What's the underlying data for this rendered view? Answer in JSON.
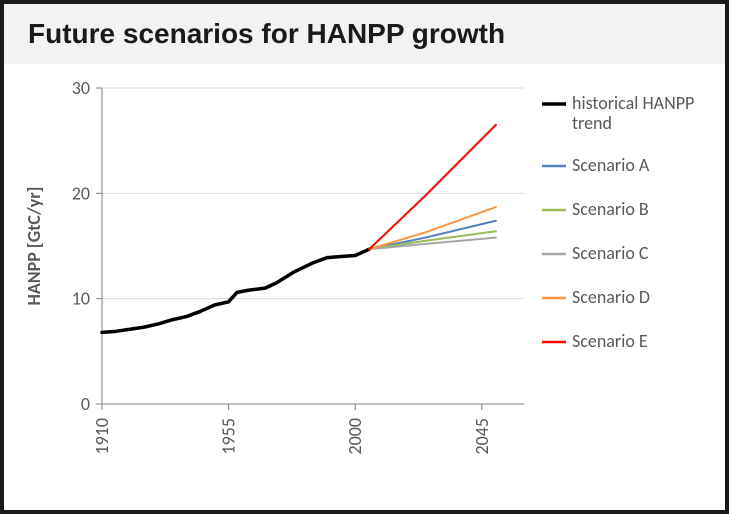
{
  "title": "Future scenarios for HANPP growth",
  "chart": {
    "type": "line",
    "background_color": "#ffffff",
    "plot_background_color": "#ffffff",
    "grid_color": "#d9d9d9",
    "axis_color": "#808080",
    "tick_label_color": "#595959",
    "axis_title_color": "#595959",
    "title_fontsize": 28,
    "label_fontsize": 18,
    "tick_fontsize": 18,
    "ylabel": "HANPP [GtC/yr]",
    "ylim": [
      0,
      30
    ],
    "yticks": [
      0,
      10,
      20,
      30
    ],
    "xlim": [
      1910,
      2060
    ],
    "xticks": [
      1910,
      1955,
      2000,
      2045
    ],
    "xtick_rotation": -90,
    "grid_horizontal": true,
    "grid_vertical": false,
    "legend_position": "right",
    "series": [
      {
        "name": "historical HANPP trend",
        "color": "#000000",
        "line_width": 3.5,
        "points": [
          [
            1910,
            6.8
          ],
          [
            1915,
            6.9
          ],
          [
            1920,
            7.1
          ],
          [
            1925,
            7.3
          ],
          [
            1930,
            7.6
          ],
          [
            1935,
            8.0
          ],
          [
            1940,
            8.3
          ],
          [
            1945,
            8.8
          ],
          [
            1950,
            9.4
          ],
          [
            1955,
            9.7
          ],
          [
            1958,
            10.6
          ],
          [
            1962,
            10.8
          ],
          [
            1968,
            11.0
          ],
          [
            1972,
            11.5
          ],
          [
            1978,
            12.5
          ],
          [
            1985,
            13.4
          ],
          [
            1990,
            13.9
          ],
          [
            1995,
            14.0
          ],
          [
            2000,
            14.1
          ],
          [
            2005,
            14.7
          ]
        ]
      },
      {
        "name": "Scenario A",
        "color": "#4f81bd",
        "line_width": 2,
        "points": [
          [
            2005,
            14.7
          ],
          [
            2025,
            15.8
          ],
          [
            2050,
            17.4
          ]
        ]
      },
      {
        "name": "Scenario B",
        "color": "#9bbb59",
        "line_width": 2,
        "points": [
          [
            2005,
            14.7
          ],
          [
            2025,
            15.5
          ],
          [
            2050,
            16.4
          ]
        ]
      },
      {
        "name": "Scenario C",
        "color": "#a6a6a6",
        "line_width": 2,
        "points": [
          [
            2005,
            14.7
          ],
          [
            2025,
            15.2
          ],
          [
            2050,
            15.8
          ]
        ]
      },
      {
        "name": "Scenario D",
        "color": "#f79646",
        "line_width": 2,
        "points": [
          [
            2005,
            14.7
          ],
          [
            2025,
            16.3
          ],
          [
            2050,
            18.7
          ]
        ]
      },
      {
        "name": "Scenario E",
        "color": "#ff0000",
        "line_width": 2,
        "points": [
          [
            2005,
            14.7
          ],
          [
            2025,
            19.8
          ],
          [
            2050,
            26.5
          ]
        ]
      }
    ]
  }
}
